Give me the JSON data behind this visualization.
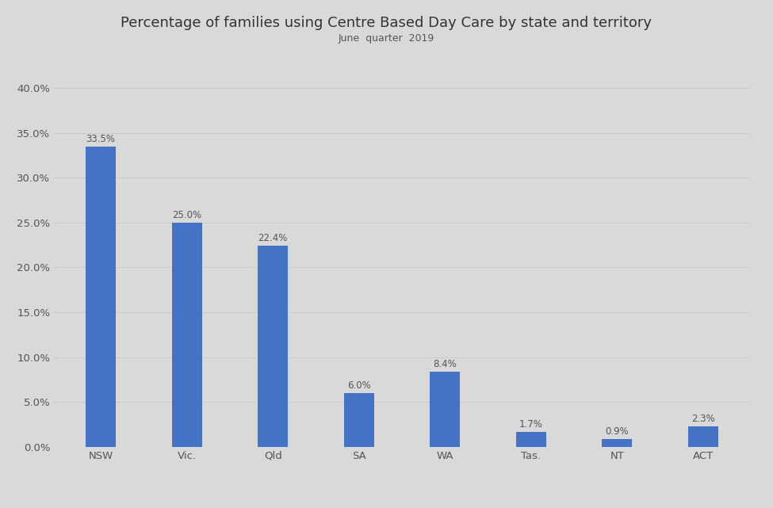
{
  "title": "Percentage of families using Centre Based Day Care by state and territory",
  "subtitle": "June  quarter  2019",
  "categories": [
    "NSW",
    "Vic.",
    "Qld",
    "SA",
    "WA",
    "Tas.",
    "NT",
    "ACT"
  ],
  "values": [
    33.5,
    25.0,
    22.4,
    6.0,
    8.4,
    1.7,
    0.9,
    2.3
  ],
  "bar_color": "#4472c4",
  "background_color": "#d9d9d9",
  "title_fontsize": 13,
  "subtitle_fontsize": 9,
  "label_fontsize": 8.5,
  "tick_fontsize": 9.5,
  "ytick_labels": [
    "0.0%",
    "5.0%",
    "10.0%",
    "15.0%",
    "20.0%",
    "25.0%",
    "30.0%",
    "35.0%",
    "40.0%"
  ],
  "ytick_values": [
    0,
    5,
    10,
    15,
    20,
    25,
    30,
    35,
    40
  ],
  "ylim": [
    0,
    43
  ]
}
